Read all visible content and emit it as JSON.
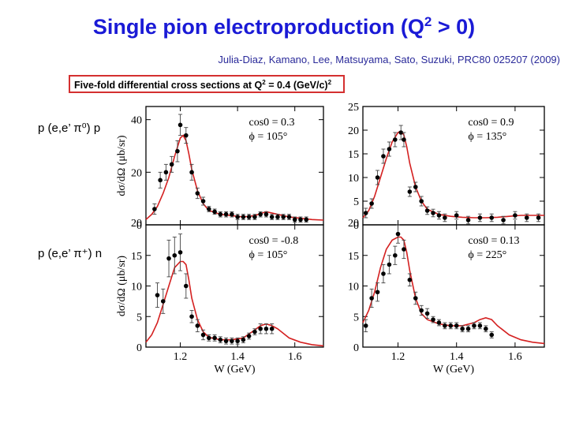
{
  "title_main": "Single pion electroproduction (Q",
  "title_sup": "2",
  "title_tail": " > 0)",
  "reference": "Julia-Diaz, Kamano, Lee, Matsuyama, Sato, Suzuki, PRC80 025207 (2009)",
  "subtitle_main": "Five-fold differential cross sections at Q",
  "subtitle_sup": "2",
  "subtitle_tail": " = 0.4 (GeV/c)",
  "subtitle_sup2": "2",
  "row_labels": [
    "p (e,e’ π⁰) p",
    "p (e,e’ π⁺) n"
  ],
  "colors": {
    "title": "#1a1ad6",
    "curve": "#d42020",
    "points": "#000000",
    "box": "#d43030"
  },
  "chart_data": [
    {
      "type": "line+scatter",
      "panel": "top-left",
      "annotation": [
        "cos0 = 0.3",
        "ϕ = 105°"
      ],
      "xlim": [
        1.08,
        1.7
      ],
      "ylim": [
        0,
        45
      ],
      "yticks": [
        0,
        20,
        40
      ],
      "xticks": [
        1.2,
        1.4,
        1.6
      ],
      "ylabel": "dσ/dΩ (μb/sr)",
      "xlabel": "",
      "theory_x": [
        1.08,
        1.1,
        1.12,
        1.14,
        1.16,
        1.18,
        1.2,
        1.21,
        1.22,
        1.23,
        1.24,
        1.26,
        1.28,
        1.3,
        1.34,
        1.38,
        1.42,
        1.46,
        1.5,
        1.54,
        1.58,
        1.62,
        1.66,
        1.7
      ],
      "theory_y": [
        2,
        4,
        7,
        12,
        18,
        26,
        33,
        34,
        32,
        27,
        21,
        13,
        8,
        5.5,
        4,
        3.5,
        3,
        3.5,
        5,
        4,
        3,
        2.5,
        2,
        1.8
      ],
      "points_x": [
        1.11,
        1.13,
        1.15,
        1.17,
        1.19,
        1.2,
        1.22,
        1.24,
        1.26,
        1.28,
        1.3,
        1.32,
        1.34,
        1.36,
        1.38,
        1.4,
        1.42,
        1.44,
        1.46,
        1.48,
        1.5,
        1.52,
        1.54,
        1.56,
        1.58,
        1.6,
        1.62,
        1.64
      ],
      "points_y": [
        6,
        17,
        20,
        23,
        28,
        38,
        34,
        20,
        12,
        9,
        6,
        5,
        4,
        4,
        4,
        3,
        3,
        3,
        3,
        4,
        4,
        3,
        3,
        3,
        3,
        2,
        2,
        2
      ],
      "points_err": [
        2,
        3,
        3,
        3,
        4,
        4,
        3,
        3,
        2,
        1.5,
        1,
        1,
        1,
        1,
        1,
        1,
        1,
        1,
        1,
        1,
        1,
        1,
        1,
        1,
        1,
        1,
        1,
        1
      ]
    },
    {
      "type": "line+scatter",
      "panel": "top-right",
      "annotation": [
        "cos0 = 0.9",
        "ϕ = 135°"
      ],
      "xlim": [
        1.08,
        1.7
      ],
      "ylim": [
        0,
        25
      ],
      "yticks": [
        0,
        5,
        10,
        15,
        20,
        25
      ],
      "xticks": [
        1.2,
        1.4,
        1.6
      ],
      "ylabel": "",
      "xlabel": "",
      "theory_x": [
        1.08,
        1.1,
        1.12,
        1.14,
        1.16,
        1.18,
        1.2,
        1.21,
        1.22,
        1.23,
        1.24,
        1.26,
        1.28,
        1.3,
        1.34,
        1.38,
        1.42,
        1.46,
        1.5,
        1.54,
        1.58,
        1.62,
        1.66,
        1.7
      ],
      "theory_y": [
        1.5,
        3,
        6,
        10,
        14,
        17.5,
        19.5,
        19.8,
        19,
        16.5,
        13,
        8,
        5,
        3.3,
        2.2,
        1.8,
        1.6,
        1.5,
        1.5,
        1.6,
        1.8,
        2,
        2,
        2
      ],
      "points_x": [
        1.09,
        1.11,
        1.13,
        1.15,
        1.17,
        1.19,
        1.21,
        1.22,
        1.24,
        1.26,
        1.28,
        1.3,
        1.32,
        1.34,
        1.36,
        1.4,
        1.44,
        1.48,
        1.52,
        1.56,
        1.6,
        1.64,
        1.68
      ],
      "points_y": [
        2.5,
        4.5,
        10,
        14.5,
        16,
        18,
        19.5,
        18,
        7,
        8,
        5,
        3,
        2.5,
        2,
        1.5,
        2,
        1,
        1.5,
        1.5,
        1,
        2,
        1.5,
        1.5
      ],
      "points_err": [
        1,
        1,
        1.5,
        1.5,
        1.5,
        1.5,
        1.5,
        1.5,
        1,
        1,
        1,
        0.8,
        0.8,
        0.8,
        0.8,
        0.8,
        0.8,
        0.8,
        0.8,
        0.8,
        0.8,
        0.8,
        0.8
      ]
    },
    {
      "type": "line+scatter",
      "panel": "bottom-left",
      "annotation": [
        "cos0 = -0.8",
        "ϕ = 105°"
      ],
      "xlim": [
        1.08,
        1.7
      ],
      "ylim": [
        0,
        20
      ],
      "yticks": [
        0,
        5,
        10,
        15,
        20
      ],
      "xticks": [
        1.2,
        1.4,
        1.6
      ],
      "ylabel": "dσ/dΩ (μb/sr)",
      "xlabel": "W (GeV)",
      "theory_x": [
        1.08,
        1.1,
        1.12,
        1.14,
        1.16,
        1.18,
        1.2,
        1.21,
        1.22,
        1.23,
        1.24,
        1.26,
        1.28,
        1.3,
        1.34,
        1.38,
        1.42,
        1.46,
        1.48,
        1.5,
        1.52,
        1.54,
        1.58,
        1.62,
        1.66,
        1.7
      ],
      "theory_y": [
        0.8,
        2,
        4,
        7,
        10,
        13,
        14,
        14,
        13.5,
        11,
        8,
        4.5,
        2.5,
        1.6,
        1.2,
        1.2,
        1.5,
        2.8,
        3.5,
        3.8,
        3.5,
        3,
        1.5,
        0.8,
        0.4,
        0.2
      ],
      "points_x": [
        1.12,
        1.14,
        1.16,
        1.18,
        1.2,
        1.22,
        1.24,
        1.26,
        1.28,
        1.3,
        1.32,
        1.34,
        1.36,
        1.38,
        1.4,
        1.42,
        1.44,
        1.46,
        1.48,
        1.5,
        1.52
      ],
      "points_y": [
        8.5,
        7.5,
        14.5,
        15,
        15.5,
        10,
        5,
        3.5,
        2,
        1.5,
        1.5,
        1.2,
        1,
        1,
        1,
        1.2,
        1.8,
        2.5,
        3,
        3,
        3
      ],
      "points_err": [
        2,
        2,
        3,
        3,
        3,
        2,
        1,
        1,
        0.8,
        0.5,
        0.5,
        0.5,
        0.5,
        0.5,
        0.5,
        0.5,
        0.5,
        0.5,
        0.8,
        0.8,
        0.8
      ]
    },
    {
      "type": "line+scatter",
      "panel": "bottom-right",
      "annotation": [
        "cos0 = 0.13",
        "ϕ = 225°"
      ],
      "xlim": [
        1.08,
        1.7
      ],
      "ylim": [
        0,
        20
      ],
      "yticks": [
        0,
        5,
        10,
        15,
        20
      ],
      "xticks": [
        1.2,
        1.4,
        1.6
      ],
      "ylabel": "",
      "xlabel": "W (GeV)",
      "theory_x": [
        1.08,
        1.1,
        1.12,
        1.14,
        1.16,
        1.18,
        1.2,
        1.21,
        1.22,
        1.23,
        1.24,
        1.26,
        1.28,
        1.3,
        1.34,
        1.38,
        1.42,
        1.46,
        1.48,
        1.5,
        1.52,
        1.54,
        1.58,
        1.62,
        1.66,
        1.7
      ],
      "theory_y": [
        4,
        6,
        9,
        13,
        16,
        17.5,
        18,
        18,
        17.5,
        15.5,
        12.5,
        8,
        5.5,
        4.5,
        3.8,
        3.5,
        3.5,
        4,
        4.5,
        4.8,
        4.5,
        3.5,
        2,
        1.2,
        0.8,
        0.6
      ],
      "points_x": [
        1.09,
        1.11,
        1.13,
        1.15,
        1.17,
        1.19,
        1.2,
        1.22,
        1.24,
        1.26,
        1.28,
        1.3,
        1.32,
        1.34,
        1.36,
        1.38,
        1.4,
        1.42,
        1.44,
        1.46,
        1.48,
        1.5,
        1.52
      ],
      "points_y": [
        3.5,
        8,
        9,
        12,
        13.5,
        15,
        18.5,
        16,
        11,
        8,
        6,
        5.5,
        4.5,
        4,
        3.5,
        3.5,
        3.5,
        3,
        3,
        3.5,
        3.5,
        3,
        2
      ],
      "points_err": [
        1,
        1.5,
        1.5,
        1.5,
        1.5,
        1.5,
        1.5,
        1.5,
        1,
        1,
        0.8,
        0.8,
        0.5,
        0.5,
        0.5,
        0.5,
        0.5,
        0.5,
        0.5,
        0.5,
        0.5,
        0.5,
        0.5
      ]
    }
  ]
}
